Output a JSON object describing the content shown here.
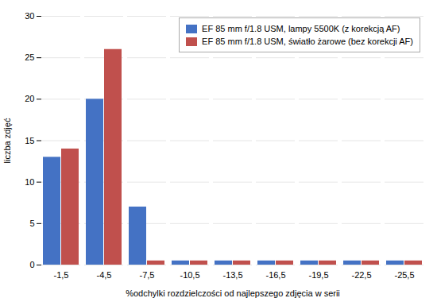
{
  "chart_data": {
    "type": "bar",
    "xlabel": "%odchylki rozdzielczości od najlepszego zdjęcia w serii",
    "ylabel": "liczba zdjęć",
    "categories": [
      "-1,5",
      "-4,5",
      "-7,5",
      "-10,5",
      "-13,5",
      "-16,5",
      "-19,5",
      "-22,5",
      "-25,5"
    ],
    "series": [
      {
        "name": "EF 85 mm f/1.8 USM, lampy 5500K (z korekcją AF)",
        "color": "#4472C4",
        "values": [
          13,
          20,
          7,
          0.5,
          0.5,
          0.5,
          0.5,
          0.5,
          0.5
        ]
      },
      {
        "name": "EF 85 mm f/1.8 USM, światło żarowe (bez korekcji AF)",
        "color": "#C0504D",
        "values": [
          14,
          26,
          0.5,
          0.5,
          0.5,
          0.5,
          0.5,
          0.5,
          0.5
        ]
      }
    ],
    "ylim": [
      0,
      30
    ],
    "yticks": [
      0,
      5,
      10,
      15,
      20,
      25,
      30
    ],
    "grid": true,
    "legend": "upper right"
  }
}
